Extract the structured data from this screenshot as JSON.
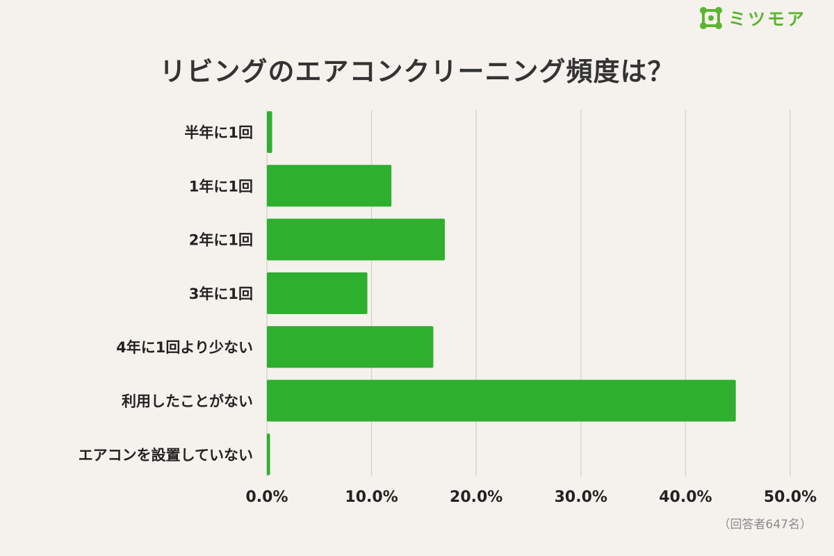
{
  "logo": {
    "text": "ミツモア",
    "icon": "mitsumore-logo-icon",
    "color": "#5cb531"
  },
  "chart_data": {
    "type": "bar",
    "orientation": "horizontal",
    "title": "リビングのエアコンクリーニング頻度は？",
    "categories": [
      "半年に1回",
      "1年に1回",
      "2年に1回",
      "3年に1回",
      "4年に1回より少ない",
      "利用したことがない",
      "エアコンを設置していない"
    ],
    "values": [
      0.5,
      11.9,
      17.0,
      9.6,
      15.9,
      44.8,
      0.3
    ],
    "xlim": [
      0,
      50
    ],
    "xticks": [
      "0.0%",
      "10.0%",
      "20.0%",
      "30.0%",
      "40.0%",
      "50.0%"
    ],
    "xtick_values": [
      0,
      10,
      20,
      30,
      40,
      50
    ],
    "grid": "vertical",
    "bar_color": "#2eaf2e",
    "grid_color": "#d8d4ce",
    "xlabel": "",
    "ylabel": ""
  },
  "footnote": "（回答者647名）"
}
